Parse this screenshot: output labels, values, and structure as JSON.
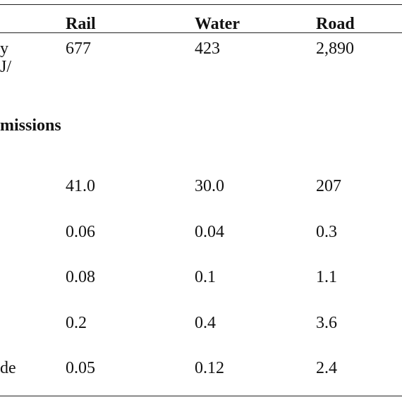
{
  "table": {
    "headers": [
      "Rail",
      "Water",
      "Road"
    ],
    "row_energy": {
      "label_line1": "y",
      "label_line2": "J/",
      "rail": "677",
      "water": "423",
      "road": "2,890"
    },
    "section_label": "missions",
    "rows": [
      {
        "label": "",
        "rail": "41.0",
        "water": "30.0",
        "road": "207"
      },
      {
        "label": "",
        "rail": "0.06",
        "water": "0.04",
        "road": "0.3"
      },
      {
        "label": "",
        "rail": "0.08",
        "water": "0.1",
        "road": "1.1"
      },
      {
        "label": "",
        "rail": "0.2",
        "water": "0.4",
        "road": "3.6"
      },
      {
        "label": "de",
        "rail": "0.05",
        "water": "0.12",
        "road": "2.4"
      }
    ]
  }
}
